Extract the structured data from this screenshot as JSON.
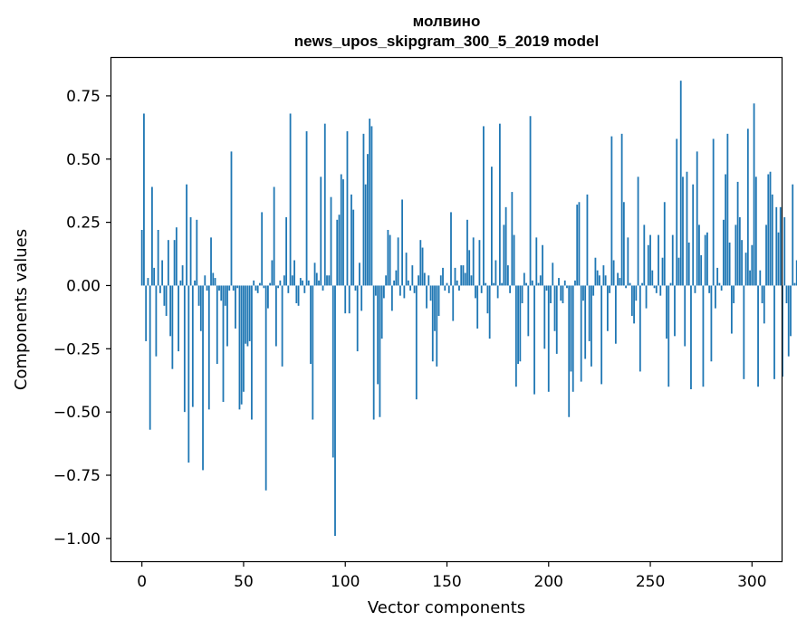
{
  "chart_data": {
    "type": "bar",
    "title": "молвино",
    "subtitle": "news_upos_skipgram_300_5_2019 model",
    "xlabel": "Vector components",
    "ylabel": "Components values",
    "xlim": [
      -15,
      315
    ],
    "ylim": [
      -1.09,
      0.9
    ],
    "xticks": [
      0,
      50,
      100,
      150,
      200,
      250,
      300
    ],
    "yticks": [
      -1.0,
      -0.75,
      -0.5,
      -0.25,
      0.0,
      0.25,
      0.5,
      0.75
    ],
    "xtick_labels": [
      "0",
      "50",
      "100",
      "150",
      "200",
      "250",
      "300"
    ],
    "ytick_labels": [
      "−1.00",
      "−0.75",
      "−0.50",
      "−0.25",
      "0.00",
      "0.25",
      "0.50",
      "0.75"
    ],
    "bar_color": "#1f77b4",
    "values": [
      0.22,
      0.68,
      -0.22,
      0.03,
      -0.57,
      0.39,
      0.07,
      -0.28,
      0.22,
      -0.03,
      0.1,
      -0.08,
      -0.12,
      0.18,
      -0.2,
      -0.33,
      0.18,
      0.23,
      -0.26,
      0.02,
      0.08,
      -0.5,
      0.4,
      -0.7,
      0.27,
      -0.48,
      0.02,
      0.26,
      -0.08,
      -0.18,
      -0.73,
      0.04,
      -0.02,
      -0.49,
      0.19,
      0.05,
      0.03,
      -0.31,
      -0.02,
      -0.06,
      -0.46,
      -0.08,
      -0.24,
      -0.02,
      0.53,
      -0.02,
      -0.17,
      -0.01,
      -0.49,
      -0.47,
      -0.42,
      -0.23,
      -0.24,
      -0.22,
      -0.53,
      0.02,
      -0.02,
      -0.03,
      0.01,
      0.29,
      -0.01,
      -0.81,
      -0.09,
      0.01,
      0.1,
      0.39,
      -0.24,
      -0.01,
      0.02,
      -0.32,
      0.04,
      0.27,
      -0.03,
      0.68,
      0.04,
      0.1,
      -0.07,
      -0.08,
      0.03,
      0.02,
      -0.03,
      0.61,
      0.02,
      -0.31,
      -0.53,
      0.09,
      0.05,
      0.02,
      0.43,
      -0.02,
      0.64,
      0.04,
      0.04,
      0.35,
      -0.68,
      -0.99,
      0.26,
      0.28,
      0.44,
      0.42,
      -0.11,
      0.61,
      -0.11,
      0.36,
      0.3,
      -0.02,
      -0.26,
      0.09,
      -0.1,
      0.6,
      0.4,
      0.52,
      0.66,
      0.63,
      -0.53,
      -0.04,
      -0.39,
      -0.52,
      -0.21,
      -0.05,
      0.04,
      0.22,
      0.2,
      -0.1,
      0.02,
      0.06,
      0.19,
      -0.04,
      0.34,
      -0.05,
      0.13,
      0.02,
      -0.02,
      0.08,
      -0.03,
      -0.45,
      0.04,
      0.18,
      0.15,
      0.05,
      -0.09,
      0.04,
      -0.06,
      -0.3,
      -0.18,
      -0.32,
      -0.12,
      0.04,
      0.07,
      -0.02,
      0.01,
      -0.03,
      0.29,
      -0.14,
      0.07,
      0.02,
      -0.02,
      0.08,
      0.08,
      0.05,
      0.26,
      0.14,
      0.04,
      0.19,
      -0.05,
      -0.17,
      0.18,
      -0.03,
      0.63,
      0.01,
      -0.11,
      -0.21,
      0.47,
      0.01,
      0.1,
      -0.05,
      0.64,
      0.01,
      0.24,
      0.31,
      0.08,
      -0.03,
      0.37,
      0.2,
      -0.4,
      -0.31,
      -0.3,
      -0.07,
      0.05,
      0.01,
      -0.2,
      0.67,
      0.02,
      -0.43,
      0.19,
      0.01,
      0.04,
      0.16,
      -0.25,
      -0.02,
      -0.42,
      -0.07,
      0.09,
      -0.18,
      -0.27,
      0.03,
      -0.06,
      -0.07,
      0.02,
      -0.01,
      -0.52,
      -0.34,
      -0.42,
      0.02,
      0.32,
      0.33,
      -0.38,
      -0.06,
      -0.29,
      0.36,
      -0.22,
      -0.32,
      -0.04,
      0.11,
      0.06,
      0.04,
      -0.39,
      0.08,
      0.04,
      -0.18,
      -0.03,
      0.59,
      0.1,
      -0.23,
      0.05,
      0.03,
      0.6,
      0.33,
      -0.01,
      0.19,
      0.01,
      -0.12,
      -0.15,
      -0.06,
      0.43,
      -0.34,
      0.01,
      0.24,
      -0.09,
      0.16,
      0.2,
      0.06,
      -0.01,
      -0.03,
      0.2,
      -0.04,
      0.11,
      0.33,
      -0.21,
      -0.4,
      0.01,
      0.2,
      -0.2,
      0.58,
      0.11,
      0.81,
      0.43,
      -0.24,
      0.45,
      0.17,
      -0.41,
      0.4,
      -0.03,
      0.53,
      0.24,
      0.12,
      -0.4,
      0.2,
      0.21,
      -0.03,
      -0.3,
      0.58,
      -0.09,
      0.07,
      0.01,
      -0.02,
      0.26,
      0.44,
      0.6,
      0.17,
      -0.19,
      -0.07,
      0.24,
      0.41,
      0.27,
      0.18,
      -0.37,
      0.13,
      0.62,
      0.06,
      0.16,
      0.72,
      0.43,
      -0.4,
      0.06,
      -0.07,
      -0.15,
      0.24,
      0.44,
      0.45,
      0.36,
      -0.37,
      0.31,
      0.21,
      0.31,
      -0.36,
      0.27,
      -0.07,
      -0.28,
      -0.2,
      0.4,
      0.01,
      0.1
    ]
  }
}
